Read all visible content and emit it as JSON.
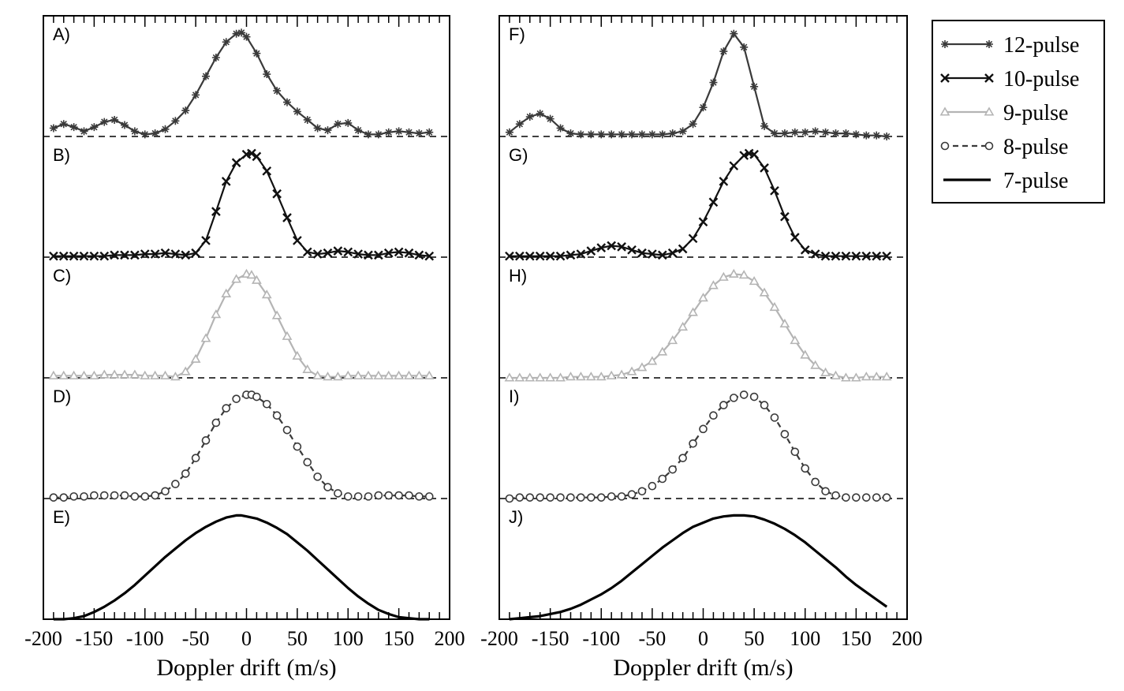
{
  "figure": {
    "legend": {
      "placement": "top-right",
      "entries": [
        {
          "label": "12-pulse",
          "color": "#3a3a3a",
          "marker": "asterisk",
          "line": "solid"
        },
        {
          "label": "10-pulse",
          "color": "#111111",
          "marker": "x",
          "line": "solid"
        },
        {
          "label": "9-pulse",
          "color": "#b4b4b4",
          "marker": "triangle",
          "line": "solid"
        },
        {
          "label": "8-pulse",
          "color": "#3a3a3a",
          "marker": "circle",
          "line": "dashed"
        },
        {
          "label": "7-pulse",
          "color": "#000000",
          "marker": "none",
          "line": "solid"
        }
      ]
    }
  },
  "chart_data": [
    {
      "type": "line",
      "column": "left",
      "xlabel": "Doppler drift (m/s)",
      "xlim": [
        -200,
        200
      ],
      "xticks": [
        -200,
        -150,
        -100,
        -50,
        0,
        50,
        100,
        150,
        200
      ],
      "xtick_labels": [
        "-200",
        "-150",
        "-100",
        "-50",
        "0",
        "50",
        "100",
        "150",
        "200"
      ],
      "y_axis_labels": "none",
      "grid": false,
      "panels": [
        {
          "label": "A)",
          "series": "12-pulse",
          "x": [
            -190,
            -180,
            -170,
            -160,
            -150,
            -140,
            -130,
            -120,
            -110,
            -100,
            -90,
            -80,
            -70,
            -60,
            -50,
            -40,
            -30,
            -20,
            -10,
            -5,
            0,
            10,
            20,
            30,
            40,
            50,
            60,
            70,
            80,
            90,
            100,
            110,
            120,
            130,
            140,
            150,
            160,
            170,
            180
          ],
          "y": [
            0.08,
            0.12,
            0.09,
            0.05,
            0.09,
            0.14,
            0.16,
            0.11,
            0.05,
            0.02,
            0.03,
            0.07,
            0.15,
            0.25,
            0.4,
            0.58,
            0.76,
            0.91,
            0.99,
            1.0,
            0.96,
            0.8,
            0.6,
            0.44,
            0.33,
            0.24,
            0.16,
            0.08,
            0.06,
            0.12,
            0.13,
            0.06,
            0.02,
            0.02,
            0.04,
            0.05,
            0.04,
            0.03,
            0.04
          ]
        },
        {
          "label": "B)",
          "series": "10-pulse",
          "x": [
            -190,
            -180,
            -170,
            -160,
            -150,
            -140,
            -130,
            -120,
            -110,
            -100,
            -90,
            -80,
            -70,
            -60,
            -50,
            -40,
            -30,
            -20,
            -10,
            0,
            5,
            10,
            20,
            30,
            40,
            50,
            60,
            70,
            80,
            90,
            100,
            110,
            120,
            130,
            140,
            150,
            160,
            170,
            180
          ],
          "y": [
            0.01,
            0.01,
            0.01,
            0.01,
            0.01,
            0.01,
            0.02,
            0.02,
            0.02,
            0.03,
            0.03,
            0.04,
            0.03,
            0.02,
            0.04,
            0.16,
            0.44,
            0.73,
            0.91,
            0.99,
            1.0,
            0.97,
            0.83,
            0.61,
            0.38,
            0.16,
            0.05,
            0.03,
            0.04,
            0.06,
            0.05,
            0.03,
            0.02,
            0.02,
            0.04,
            0.05,
            0.04,
            0.02,
            0.01
          ]
        },
        {
          "label": "C)",
          "series": "9-pulse",
          "x": [
            -190,
            -180,
            -170,
            -160,
            -150,
            -140,
            -130,
            -120,
            -110,
            -100,
            -90,
            -80,
            -70,
            -60,
            -50,
            -40,
            -30,
            -20,
            -10,
            0,
            5,
            10,
            20,
            30,
            40,
            50,
            60,
            70,
            80,
            90,
            100,
            110,
            120,
            130,
            140,
            150,
            160,
            170,
            180
          ],
          "y": [
            0.02,
            0.02,
            0.02,
            0.02,
            0.02,
            0.03,
            0.03,
            0.03,
            0.03,
            0.02,
            0.02,
            0.02,
            0.01,
            0.06,
            0.18,
            0.38,
            0.61,
            0.81,
            0.95,
            1.0,
            0.99,
            0.94,
            0.8,
            0.6,
            0.4,
            0.21,
            0.08,
            0.02,
            0.01,
            0.01,
            0.02,
            0.02,
            0.02,
            0.02,
            0.02,
            0.02,
            0.02,
            0.02,
            0.02
          ]
        },
        {
          "label": "D)",
          "series": "8-pulse",
          "x": [
            -190,
            -180,
            -170,
            -160,
            -150,
            -140,
            -130,
            -120,
            -110,
            -100,
            -90,
            -80,
            -70,
            -60,
            -50,
            -40,
            -30,
            -20,
            -10,
            0,
            5,
            10,
            20,
            30,
            40,
            50,
            60,
            70,
            80,
            90,
            100,
            110,
            120,
            130,
            140,
            150,
            160,
            170,
            180
          ],
          "y": [
            0.01,
            0.01,
            0.02,
            0.02,
            0.03,
            0.03,
            0.03,
            0.03,
            0.02,
            0.02,
            0.03,
            0.07,
            0.14,
            0.24,
            0.39,
            0.56,
            0.73,
            0.87,
            0.96,
            1.0,
            1.0,
            0.98,
            0.91,
            0.8,
            0.66,
            0.5,
            0.35,
            0.21,
            0.11,
            0.05,
            0.02,
            0.02,
            0.02,
            0.03,
            0.03,
            0.03,
            0.03,
            0.02,
            0.02
          ]
        },
        {
          "label": "E)",
          "series": "7-pulse",
          "x": [
            -190,
            -180,
            -170,
            -160,
            -150,
            -140,
            -130,
            -120,
            -110,
            -100,
            -90,
            -80,
            -70,
            -60,
            -50,
            -40,
            -30,
            -20,
            -10,
            -5,
            0,
            10,
            20,
            30,
            40,
            50,
            60,
            70,
            80,
            90,
            100,
            110,
            120,
            130,
            140,
            150,
            160,
            170,
            180
          ],
          "y": [
            0.0,
            0.0,
            0.01,
            0.03,
            0.07,
            0.12,
            0.18,
            0.25,
            0.33,
            0.42,
            0.51,
            0.6,
            0.68,
            0.76,
            0.83,
            0.89,
            0.94,
            0.98,
            1.0,
            1.0,
            0.99,
            0.97,
            0.93,
            0.88,
            0.82,
            0.74,
            0.66,
            0.57,
            0.48,
            0.39,
            0.3,
            0.22,
            0.15,
            0.09,
            0.05,
            0.02,
            0.01,
            0.0,
            0.0
          ]
        }
      ]
    },
    {
      "type": "line",
      "column": "right",
      "xlabel": "Doppler drift (m/s)",
      "xlim": [
        -200,
        200
      ],
      "xticks": [
        -200,
        -150,
        -100,
        -50,
        0,
        50,
        100,
        150,
        200
      ],
      "xtick_labels": [
        "-200",
        "-150",
        "-100",
        "-50",
        "0",
        "50",
        "100",
        "150",
        "200"
      ],
      "y_axis_labels": "none",
      "grid": false,
      "panels": [
        {
          "label": "F)",
          "series": "12-pulse",
          "x": [
            -190,
            -180,
            -170,
            -160,
            -150,
            -140,
            -130,
            -120,
            -110,
            -100,
            -90,
            -80,
            -70,
            -60,
            -50,
            -40,
            -30,
            -20,
            -10,
            0,
            10,
            20,
            30,
            40,
            50,
            60,
            70,
            80,
            90,
            100,
            110,
            120,
            130,
            140,
            150,
            160,
            170,
            180
          ],
          "y": [
            0.04,
            0.12,
            0.19,
            0.22,
            0.17,
            0.08,
            0.03,
            0.02,
            0.02,
            0.02,
            0.02,
            0.02,
            0.02,
            0.02,
            0.02,
            0.02,
            0.03,
            0.05,
            0.12,
            0.28,
            0.52,
            0.82,
            0.99,
            0.86,
            0.48,
            0.1,
            0.03,
            0.03,
            0.04,
            0.04,
            0.05,
            0.04,
            0.03,
            0.03,
            0.02,
            0.01,
            0.01,
            0.0
          ]
        },
        {
          "label": "G)",
          "series": "10-pulse",
          "x": [
            -190,
            -180,
            -170,
            -160,
            -150,
            -140,
            -130,
            -120,
            -110,
            -100,
            -90,
            -80,
            -70,
            -60,
            -50,
            -40,
            -30,
            -20,
            -10,
            0,
            10,
            20,
            30,
            40,
            45,
            50,
            60,
            70,
            80,
            90,
            100,
            110,
            120,
            130,
            140,
            150,
            160,
            170,
            180
          ],
          "y": [
            0.01,
            0.01,
            0.01,
            0.01,
            0.01,
            0.01,
            0.02,
            0.03,
            0.06,
            0.09,
            0.11,
            0.1,
            0.07,
            0.04,
            0.03,
            0.02,
            0.04,
            0.08,
            0.18,
            0.34,
            0.53,
            0.73,
            0.88,
            0.98,
            1.0,
            0.99,
            0.86,
            0.64,
            0.39,
            0.19,
            0.07,
            0.03,
            0.01,
            0.01,
            0.01,
            0.01,
            0.01,
            0.01,
            0.01
          ]
        },
        {
          "label": "H)",
          "series": "9-pulse",
          "x": [
            -190,
            -180,
            -170,
            -160,
            -150,
            -140,
            -130,
            -120,
            -110,
            -100,
            -90,
            -80,
            -70,
            -60,
            -50,
            -40,
            -30,
            -20,
            -10,
            0,
            10,
            20,
            30,
            40,
            50,
            60,
            70,
            80,
            90,
            100,
            110,
            120,
            130,
            140,
            150,
            160,
            170,
            180
          ],
          "y": [
            0.0,
            0.0,
            0.0,
            0.0,
            0.0,
            0.0,
            0.01,
            0.01,
            0.01,
            0.01,
            0.02,
            0.03,
            0.06,
            0.1,
            0.16,
            0.25,
            0.36,
            0.49,
            0.63,
            0.77,
            0.89,
            0.97,
            1.0,
            0.99,
            0.93,
            0.82,
            0.68,
            0.52,
            0.36,
            0.22,
            0.12,
            0.05,
            0.02,
            0.0,
            0.0,
            0.01,
            0.01,
            0.01
          ]
        },
        {
          "label": "I)",
          "series": "8-pulse",
          "x": [
            -190,
            -180,
            -170,
            -160,
            -150,
            -140,
            -130,
            -120,
            -110,
            -100,
            -90,
            -80,
            -70,
            -60,
            -50,
            -40,
            -30,
            -20,
            -10,
            0,
            10,
            20,
            30,
            40,
            50,
            60,
            70,
            80,
            90,
            100,
            110,
            120,
            130,
            140,
            150,
            160,
            170,
            180
          ],
          "y": [
            0.0,
            0.01,
            0.01,
            0.01,
            0.01,
            0.01,
            0.01,
            0.01,
            0.01,
            0.01,
            0.02,
            0.02,
            0.04,
            0.07,
            0.12,
            0.19,
            0.28,
            0.39,
            0.53,
            0.67,
            0.8,
            0.9,
            0.97,
            1.0,
            0.98,
            0.9,
            0.78,
            0.62,
            0.45,
            0.29,
            0.16,
            0.07,
            0.03,
            0.01,
            0.01,
            0.01,
            0.01,
            0.01
          ]
        },
        {
          "label": "J)",
          "series": "7-pulse",
          "x": [
            -190,
            -180,
            -170,
            -160,
            -150,
            -140,
            -130,
            -120,
            -110,
            -100,
            -90,
            -80,
            -70,
            -60,
            -50,
            -40,
            -30,
            -20,
            -10,
            0,
            10,
            20,
            30,
            40,
            50,
            60,
            70,
            80,
            90,
            100,
            110,
            120,
            130,
            140,
            150,
            160,
            170,
            180
          ],
          "y": [
            0.0,
            0.01,
            0.02,
            0.03,
            0.05,
            0.07,
            0.1,
            0.14,
            0.19,
            0.24,
            0.3,
            0.37,
            0.45,
            0.53,
            0.61,
            0.69,
            0.76,
            0.83,
            0.89,
            0.93,
            0.97,
            0.99,
            1.0,
            1.0,
            0.99,
            0.96,
            0.92,
            0.87,
            0.81,
            0.74,
            0.66,
            0.58,
            0.5,
            0.41,
            0.33,
            0.26,
            0.19,
            0.12
          ]
        }
      ]
    }
  ]
}
